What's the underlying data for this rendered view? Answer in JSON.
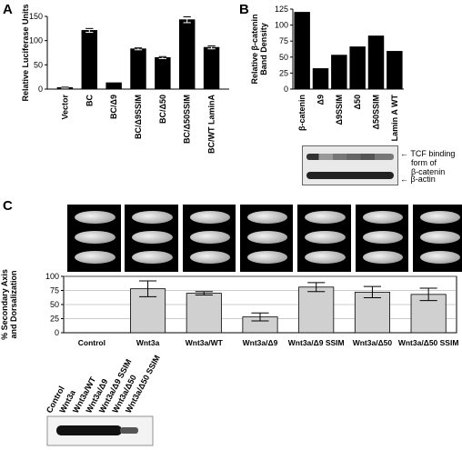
{
  "panels": {
    "a": "A",
    "b": "B",
    "c": "C"
  },
  "blot_b": {
    "tcf_label_1": "TCF binding",
    "tcf_label_2": "form of",
    "tcf_label_3": "β-catenin",
    "actin_label": "β-actin"
  },
  "chart_data": [
    {
      "type": "bar",
      "panel": "A",
      "categories": [
        "Vector",
        "BC",
        "BC/Δ9",
        "BC/Δ9SSIM",
        "BC/Δ50",
        "BC/Δ50SSIM",
        "BC/WT LaminA"
      ],
      "values": [
        3,
        121,
        13,
        83,
        65,
        143,
        86
      ],
      "errors": [
        1,
        4,
        0,
        2,
        2,
        6,
        3
      ],
      "ylabel": "Relative Luciferase Units",
      "ylim": [
        0,
        150
      ],
      "yticks": [
        0,
        50,
        100,
        150
      ],
      "color": "#000000"
    },
    {
      "type": "bar",
      "panel": "B",
      "categories": [
        "β-catenin",
        "Δ9",
        "Δ9SSIM",
        "Δ50",
        "Δ50SSIM",
        "Lamin A WT"
      ],
      "values": [
        120,
        32,
        53,
        66,
        83,
        59
      ],
      "ylabel": "Relative β-catenin Band Density",
      "ylim": [
        0,
        125
      ],
      "yticks": [
        0,
        25,
        50,
        75,
        100,
        125
      ],
      "color": "#000000"
    },
    {
      "type": "bar",
      "panel": "C",
      "categories": [
        "Control",
        "Wnt3a",
        "Wnt3a/WT",
        "Wnt3a/Δ9",
        "Wnt3a/Δ9 SSIM",
        "Wnt3a/Δ50",
        "Wnt3a/Δ50 SSIM"
      ],
      "values": [
        0,
        78,
        70,
        28,
        81,
        72,
        68
      ],
      "errors": [
        0,
        14,
        3,
        7,
        8,
        10,
        11
      ],
      "ylabel": "% Secondary Axis and Dorsalization",
      "ylim": [
        0,
        100
      ],
      "yticks": [
        0,
        25,
        50,
        75,
        100
      ],
      "grid": true,
      "color": "#d0d0d0"
    }
  ],
  "blot_c": {
    "lanes": [
      "Control",
      "Wnt3a",
      "Wnt3a/WT",
      "Wnt3a/Δ9",
      "Wnt3a/Δ9 SSIM",
      "Wnt3a/Δ50",
      "Wnt3a/Δ50 SSIM"
    ]
  }
}
